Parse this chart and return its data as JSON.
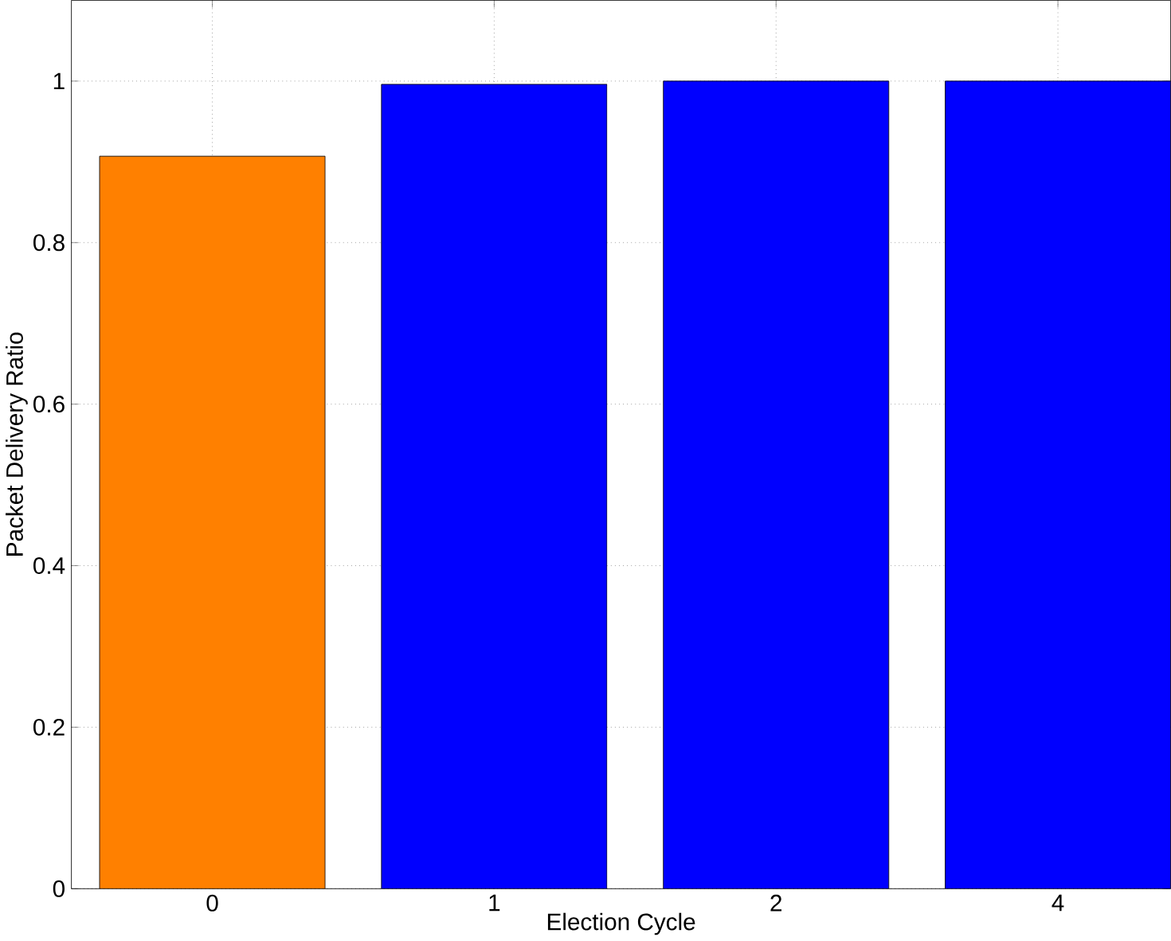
{
  "chart_data": {
    "type": "bar",
    "xlabel": "Election Cycle",
    "ylabel": "Packet Delivery Ratio",
    "categories": [
      "0",
      "1",
      "2",
      "4"
    ],
    "values": [
      0.907,
      0.996,
      1.0,
      1.0
    ],
    "colors": [
      "#ff8000",
      "#0000ff",
      "#0000ff",
      "#0000ff"
    ],
    "ylim": [
      0,
      1.1
    ],
    "yticks": [
      0,
      0.2,
      0.4,
      0.6,
      0.8,
      1
    ],
    "grid": true
  }
}
